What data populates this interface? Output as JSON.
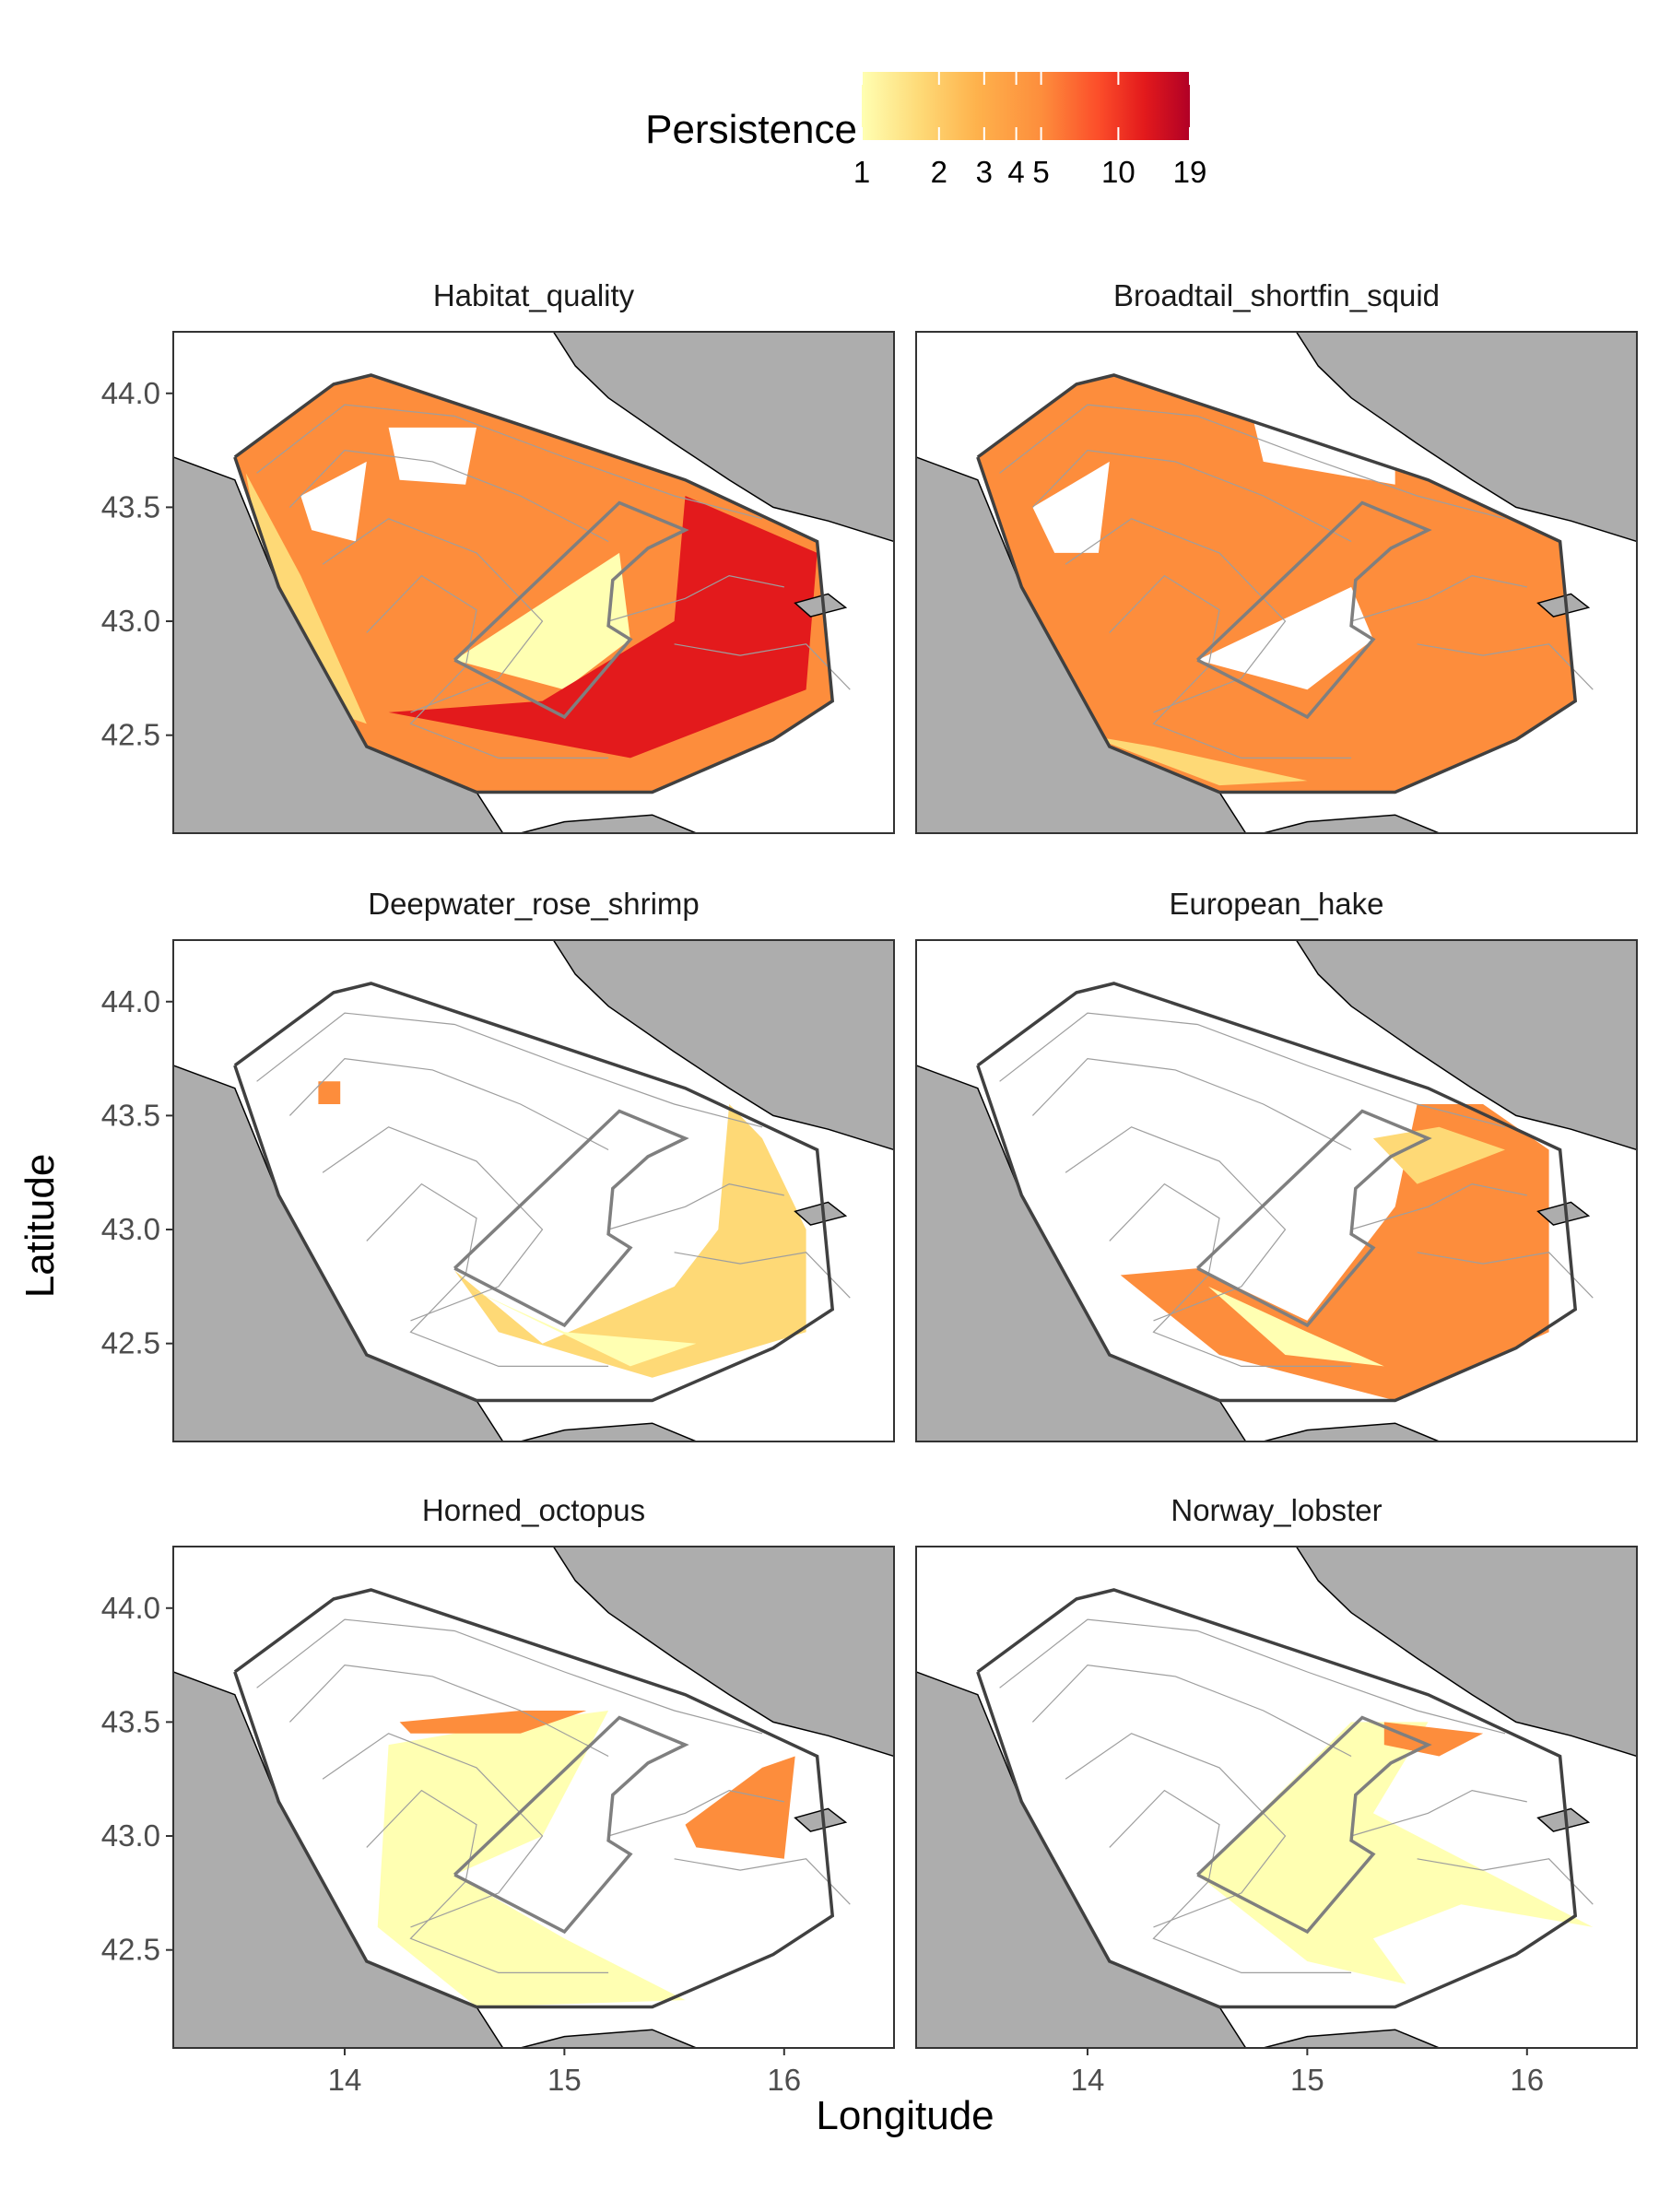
{
  "legend": {
    "title": "Persistence",
    "ticks": [
      {
        "label": "1",
        "value": 1
      },
      {
        "label": "2",
        "value": 2
      },
      {
        "label": "3",
        "value": 3
      },
      {
        "label": "4",
        "value": 4
      },
      {
        "label": "5",
        "value": 5
      },
      {
        "label": "10",
        "value": 10
      },
      {
        "label": "19",
        "value": 19
      }
    ],
    "scale": "log",
    "range": [
      1,
      19
    ],
    "colors": [
      "#FFFFB2",
      "#FED976",
      "#FEB24C",
      "#FD8D3C",
      "#FC4E2A",
      "#E31A1C",
      "#B10026"
    ]
  },
  "axes": {
    "xlabel": "Longitude",
    "ylabel": "Latitude",
    "x_ticks": [
      {
        "label": "14",
        "value": 14
      },
      {
        "label": "15",
        "value": 15
      },
      {
        "label": "16",
        "value": 16
      }
    ],
    "y_ticks": [
      {
        "label": "44.0",
        "value": 44.0
      },
      {
        "label": "43.5",
        "value": 43.5
      },
      {
        "label": "43.0",
        "value": 43.0
      },
      {
        "label": "42.5",
        "value": 42.5
      }
    ],
    "xlim": [
      13.22,
      16.5
    ],
    "ylim": [
      42.07,
      44.27
    ]
  },
  "colors": {
    "land": "#ADADAD",
    "sea": "#FFFFFF",
    "outline": "#404040",
    "inner_polygon": "#7F7F7F",
    "bathymetry": "#9E9E9E"
  },
  "chart_data": [
    {
      "type": "heatmap",
      "title": "Habitat_quality",
      "dominant_persistence": 5,
      "coverage": "most of study area",
      "max_persistence": 19
    },
    {
      "type": "heatmap",
      "title": "Broadtail_shortfin_squid",
      "dominant_persistence": 4,
      "coverage": "most of study area"
    },
    {
      "type": "heatmap",
      "title": "Deepwater_rose_shrimp",
      "dominant_persistence": 1.5,
      "coverage": "southeastern margin"
    },
    {
      "type": "heatmap",
      "title": "European_hake",
      "dominant_persistence": 4,
      "coverage": "central and eastern basin"
    },
    {
      "type": "heatmap",
      "title": "Horned_octopus",
      "dominant_persistence": 1,
      "coverage": "western arc"
    },
    {
      "type": "heatmap",
      "title": "Norway_lobster",
      "dominant_persistence": 1,
      "coverage": "central pit"
    }
  ]
}
